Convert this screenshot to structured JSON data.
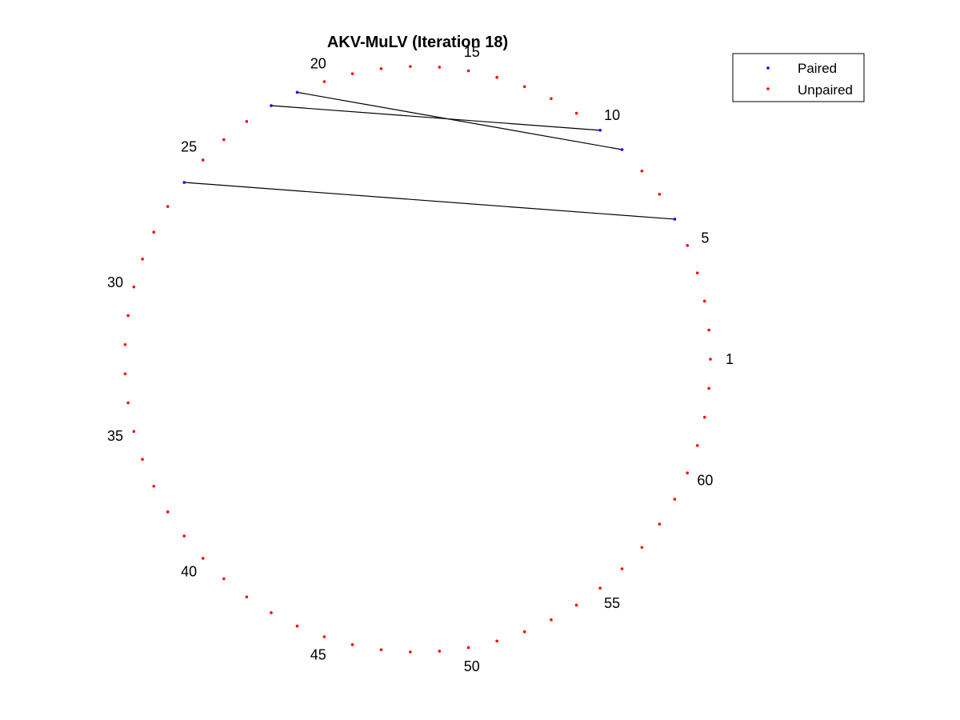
{
  "chart_data": {
    "type": "scatter",
    "title": "AKV-MuLV (Iteration 18)",
    "xlabel": "",
    "ylabel": "",
    "n_nodes": 63,
    "node_labels": [
      "1",
      "5",
      "10",
      "15",
      "20",
      "25",
      "30",
      "35",
      "40",
      "45",
      "50",
      "55",
      "60"
    ],
    "labeled_nodes": [
      1,
      5,
      10,
      15,
      20,
      25,
      30,
      35,
      40,
      45,
      50,
      55,
      60
    ],
    "paired_nodes": [
      6,
      9,
      10,
      21,
      22,
      26
    ],
    "pairs": [
      [
        6,
        26
      ],
      [
        9,
        21
      ],
      [
        10,
        22
      ]
    ],
    "series": [
      {
        "name": "Paired",
        "color": "#0000ff"
      },
      {
        "name": "Unpaired",
        "color": "#ff0000"
      }
    ],
    "legend_position": "top-right",
    "grid": false
  }
}
